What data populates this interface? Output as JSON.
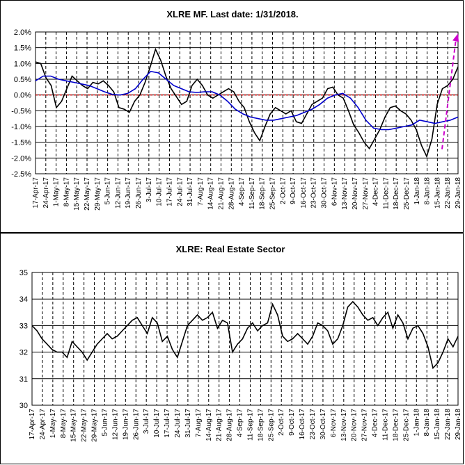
{
  "chart_data": [
    {
      "type": "line",
      "title": "XLRE MF. Last date: 1/31/2018.",
      "x_ticks": [
        "17-Apr-17",
        "24-Apr-17",
        "1-May-17",
        "8-May-17",
        "15-May-17",
        "22-May-17",
        "29-May-17",
        "5-Jun-17",
        "12-Jun-17",
        "19-Jun-17",
        "26-Jun-17",
        "3-Jul-17",
        "10-Jul-17",
        "17-Jul-17",
        "24-Jul-17",
        "31-Jul-17",
        "7-Aug-17",
        "14-Aug-17",
        "21-Aug-17",
        "28-Aug-17",
        "4-Sep-17",
        "11-Sep-17",
        "18-Sep-17",
        "25-Sep-17",
        "2-Oct-17",
        "9-Oct-17",
        "16-Oct-17",
        "23-Oct-17",
        "30-Oct-17",
        "6-Nov-17",
        "13-Nov-17",
        "20-Nov-17",
        "27-Nov-17",
        "4-Dec-17",
        "11-Dec-17",
        "18-Dec-17",
        "25-Dec-17",
        "1-Jan-18",
        "8-Jan-18",
        "15-Jan-18",
        "22-Jan-18",
        "29-Jan-18"
      ],
      "y_ticks": [
        "2.0%",
        "1.5%",
        "1.0%",
        "0.5%",
        "0.0%",
        "-0.5%",
        "-1.0%",
        "-1.5%",
        "-2.0%",
        "-2.5%"
      ],
      "ylim": [
        -2.5,
        2.0
      ],
      "reference_line": 0.0,
      "grid": true,
      "colors": {
        "mf": "#000000",
        "average": "#0000cc",
        "zero": "#cc0000",
        "arrow": "#cc00cc"
      },
      "series": [
        {
          "role": "mf",
          "values": [
            1.05,
            1.0,
            0.55,
            0.3,
            -0.4,
            -0.2,
            0.2,
            0.6,
            0.45,
            0.3,
            0.2,
            0.4,
            0.35,
            0.45,
            0.3,
            0.1,
            -0.4,
            -0.45,
            -0.55,
            -0.2,
            0.0,
            0.4,
            0.9,
            1.45,
            1.1,
            0.6,
            0.2,
            -0.05,
            -0.3,
            -0.2,
            0.3,
            0.5,
            0.3,
            0.0,
            -0.1,
            0.0,
            0.1,
            0.2,
            0.1,
            -0.2,
            -0.4,
            -0.85,
            -1.2,
            -1.45,
            -1.0,
            -0.6,
            -0.4,
            -0.5,
            -0.6,
            -0.5,
            -0.85,
            -0.9,
            -0.6,
            -0.3,
            -0.2,
            -0.1,
            0.2,
            0.25,
            0.0,
            -0.1,
            -0.5,
            -0.95,
            -1.2,
            -1.5,
            -1.7,
            -1.4,
            -1.1,
            -0.7,
            -0.4,
            -0.35,
            -0.5,
            -0.6,
            -0.8,
            -1.1,
            -1.6,
            -1.95,
            -1.4,
            -0.3,
            0.2,
            0.3,
            0.5,
            0.9
          ]
        },
        {
          "role": "average",
          "values": [
            0.45,
            0.6,
            0.6,
            0.5,
            0.45,
            0.4,
            0.35,
            0.3,
            0.2,
            0.1,
            0.02,
            0.0,
            0.05,
            0.2,
            0.5,
            0.75,
            0.7,
            0.5,
            0.3,
            0.2,
            0.1,
            0.08,
            0.1,
            0.1,
            0.0,
            -0.2,
            -0.45,
            -0.6,
            -0.7,
            -0.75,
            -0.8,
            -0.8,
            -0.75,
            -0.7,
            -0.65,
            -0.55,
            -0.45,
            -0.3,
            -0.1,
            0.0,
            0.05,
            -0.1,
            -0.4,
            -0.8,
            -1.05,
            -1.1,
            -1.1,
            -1.05,
            -1.0,
            -0.95,
            -0.8,
            -0.85,
            -0.9,
            -0.85,
            -0.8,
            -0.7
          ]
        }
      ]
    },
    {
      "type": "line",
      "title": "XLRE: Real Estate Sector",
      "x_ticks": [
        "17-Apr-17",
        "24-Apr-17",
        "1-May-17",
        "8-May-17",
        "15-May-17",
        "22-May-17",
        "29-May-17",
        "5-Jun-17",
        "12-Jun-17",
        "19-Jun-17",
        "26-Jun-17",
        "3-Jul-17",
        "10-Jul-17",
        "17-Jul-17",
        "24-Jul-17",
        "31-Jul-17",
        "7-Aug-17",
        "14-Aug-17",
        "21-Aug-17",
        "28-Aug-17",
        "4-Sep-17",
        "11-Sep-17",
        "18-Sep-17",
        "25-Sep-17",
        "2-Oct-17",
        "9-Oct-17",
        "16-Oct-17",
        "23-Oct-17",
        "30-Oct-17",
        "6-Nov-17",
        "13-Nov-17",
        "20-Nov-17",
        "27-Nov-17",
        "4-Dec-17",
        "11-Dec-17",
        "18-Dec-17",
        "25-Dec-17",
        "1-Jan-18",
        "8-Jan-18",
        "15-Jan-18",
        "22-Jan-18",
        "29-Jan-18"
      ],
      "y_ticks": [
        "35",
        "34",
        "33",
        "32",
        "31",
        "30"
      ],
      "ylim": [
        30,
        35
      ],
      "grid": true,
      "colors": {
        "price": "#000000"
      },
      "series": [
        {
          "role": "price",
          "values": [
            33.0,
            32.8,
            32.5,
            32.3,
            32.1,
            32.0,
            32.0,
            31.8,
            32.4,
            32.2,
            32.0,
            31.7,
            32.0,
            32.3,
            32.5,
            32.7,
            32.5,
            32.6,
            32.8,
            33.0,
            33.2,
            33.3,
            33.0,
            32.7,
            33.3,
            33.1,
            32.4,
            32.6,
            32.1,
            31.8,
            32.4,
            33.0,
            33.2,
            33.4,
            33.2,
            33.3,
            33.5,
            32.9,
            33.2,
            33.1,
            32.0,
            32.3,
            32.5,
            32.9,
            33.1,
            32.8,
            33.0,
            33.1,
            33.8,
            33.4,
            32.6,
            32.4,
            32.5,
            32.7,
            32.5,
            32.3,
            32.6,
            33.1,
            33.0,
            32.8,
            32.3,
            32.5,
            33.0,
            33.7,
            33.9,
            33.7,
            33.4,
            33.2,
            33.3,
            33.0,
            33.3,
            33.5,
            32.9,
            33.4,
            33.1,
            32.5,
            32.9,
            33.0,
            32.7,
            32.2,
            31.4,
            31.6,
            32.0,
            32.5,
            32.2,
            32.6
          ]
        }
      ]
    }
  ]
}
